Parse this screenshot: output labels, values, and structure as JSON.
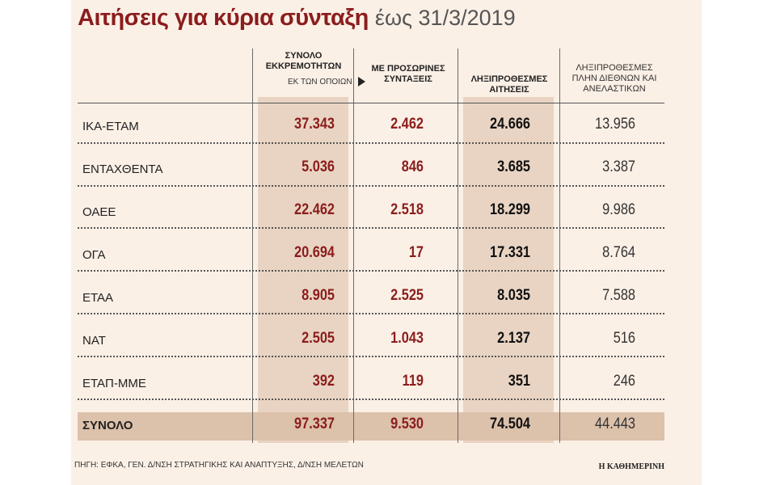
{
  "title": "Αιτήσεις για κύρια σύνταξη",
  "subtitle": "έως 31/3/2019",
  "headers": {
    "c1": "ΣΥΝΟΛΟ ΕΚΚΡΕΜΟΤΗΤΩΝ",
    "c1_note": "ΕΚ ΤΩΝ ΟΠΟΙΩΝ",
    "c2": "ΜΕ ΠΡΟΣΩΡΙΝΕΣ ΣΥΝΤΑΞΕΙΣ",
    "c3": "ΛΗΞΙΠΡΟΘΕΣΜΕΣ ΑΙΤΗΣΕΙΣ",
    "c4": "ΛΗΞΙΠΡΟΘΕΣΜΕΣ ΠΛΗΝ ΔΙΕΘΝΩΝ ΚΑΙ ΑΝΕΛΑΣΤΙΚΩΝ"
  },
  "chart_data": {
    "type": "table",
    "title": "Αιτήσεις για κύρια σύνταξη",
    "subtitle": "έως 31/3/2019",
    "columns": [
      "ΣΥΝΟΛΟ ΕΚΚΡΕΜΟΤΗΤΩΝ",
      "ΜΕ ΠΡΟΣΩΡΙΝΕΣ ΣΥΝΤΑΞΕΙΣ",
      "ΛΗΞΙΠΡΟΘΕΣΜΕΣ ΑΙΤΗΣΕΙΣ",
      "ΛΗΞΙΠΡΟΘΕΣΜΕΣ ΠΛΗΝ ΔΙΕΘΝΩΝ ΚΑΙ ΑΝΕΛΑΣΤΙΚΩΝ"
    ],
    "rows": [
      {
        "label": "ΙΚΑ-ΕΤΑΜ",
        "values": [
          "37.343",
          "2.462",
          "24.666",
          "13.956"
        ]
      },
      {
        "label": "ΕΝΤΑΧΘΕΝΤΑ",
        "values": [
          "5.036",
          "846",
          "3.685",
          "3.387"
        ]
      },
      {
        "label": "ΟΑΕΕ",
        "values": [
          "22.462",
          "2.518",
          "18.299",
          "9.986"
        ]
      },
      {
        "label": "ΟΓΑ",
        "values": [
          "20.694",
          "17",
          "17.331",
          "8.764"
        ]
      },
      {
        "label": "ΕΤΑΑ",
        "values": [
          "8.905",
          "2.525",
          "8.035",
          "7.588"
        ]
      },
      {
        "label": "ΝΑΤ",
        "values": [
          "2.505",
          "1.043",
          "2.137",
          "516"
        ]
      },
      {
        "label": "ΕΤΑΠ-ΜΜΕ",
        "values": [
          "392",
          "119",
          "351",
          "246"
        ]
      }
    ],
    "total": {
      "label": "ΣΥΝΟΛΟ",
      "values": [
        "97.337",
        "9.530",
        "74.504",
        "44.443"
      ]
    }
  },
  "source": "ΠΗΓΗ: ΕΦΚΑ, ΓΕΝ. Δ/ΝΣΗ ΣΤΡΑΤΗΓΙΚΗΣ ΚΑΙ ΑΝΑΠΤΥΞΗΣ, Δ/ΝΣΗ ΜΕΛΕΤΩΝ",
  "brand": "Η ΚΑΘΗΜΕΡΙΝΗ",
  "colors": {
    "accent": "#8b1d1d",
    "panel": "#fbf0e6",
    "shade": "#e9d4c3",
    "total_band": "#dcc1ab"
  }
}
